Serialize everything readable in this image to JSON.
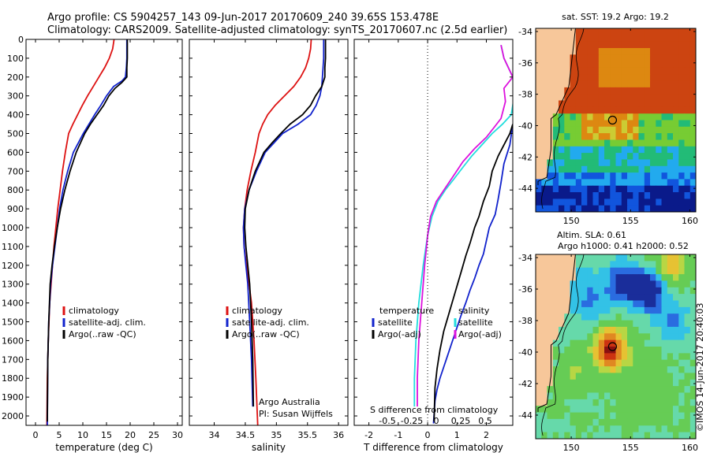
{
  "header": {
    "line1": "Argo profile: CS 5904257_143 09-Jun-2017 20170609_240 39.65S 153.478E",
    "line2": "Climatology: CARS2009. Satellite-adjusted climatology: synTS_20170607.nc (2.5d earlier)"
  },
  "colors": {
    "climatology": "#dd1111",
    "satellite": "#1122cc",
    "argo": "#000000",
    "satellite_s": "#22dddd",
    "argo_s": "#dd11dd",
    "land": "#f7c79a"
  },
  "chart_data": [
    {
      "type": "line",
      "id": "temperature",
      "xlabel": "temperature (deg C)",
      "ylabel": "",
      "xlim": [
        -2,
        31
      ],
      "ylim": [
        2050,
        0
      ],
      "xticks": [
        0,
        5,
        10,
        15,
        20,
        25,
        30
      ],
      "xtick_labels": [
        "0",
        "5",
        "10",
        "15",
        "20",
        "25",
        "30"
      ],
      "yticks": [
        0,
        100,
        200,
        300,
        400,
        500,
        600,
        700,
        800,
        900,
        1000,
        1100,
        1200,
        1300,
        1400,
        1500,
        1600,
        1700,
        1800,
        1900,
        2000
      ],
      "ytick_labels": [
        "0",
        "100",
        "200",
        "300",
        "400",
        "500",
        "600",
        "700",
        "800",
        "900",
        "1000",
        "1100",
        "1200",
        "1300",
        "1400",
        "1500",
        "1600",
        "1700",
        "1800",
        "1900",
        "2000"
      ],
      "legend": [
        "climatology",
        "satellite-adj. clim.",
        "Argo(..raw -QC)"
      ],
      "series": [
        {
          "name": "climatology",
          "color": "#dd1111",
          "x": [
            16.6,
            16.3,
            15.6,
            14.6,
            13.4,
            12.2,
            11.0,
            9.9,
            8.9,
            7.9,
            7.0,
            6.3,
            5.7,
            5.2,
            4.7,
            4.3,
            3.9,
            3.6,
            3.3,
            3.0,
            2.7,
            2.5,
            2.4
          ],
          "y": [
            0,
            50,
            100,
            150,
            200,
            250,
            300,
            350,
            400,
            450,
            500,
            600,
            700,
            800,
            900,
            1000,
            1100,
            1200,
            1300,
            1400,
            1600,
            1800,
            2050
          ]
        },
        {
          "name": "satellite-adj. clim.",
          "color": "#1122cc",
          "x": [
            19.3,
            19.3,
            19.3,
            19.2,
            19.0,
            18.3,
            16.5,
            15.0,
            13.8,
            12.5,
            11.3,
            10.1,
            8.0,
            6.8,
            5.8,
            5.1,
            4.6,
            4.1,
            3.6,
            3.2,
            2.8,
            2.6,
            2.5
          ],
          "y": [
            0,
            50,
            100,
            150,
            200,
            220,
            250,
            300,
            350,
            400,
            450,
            500,
            600,
            700,
            800,
            900,
            1000,
            1100,
            1200,
            1300,
            1500,
            1700,
            2050
          ]
        },
        {
          "name": "Argo(..raw -QC)",
          "color": "#000000",
          "x": [
            19.4,
            19.4,
            19.4,
            19.3,
            19.3,
            18.2,
            16.8,
            15.5,
            14.4,
            13.0,
            11.6,
            10.4,
            8.6,
            7.3,
            6.2,
            5.3,
            4.6,
            4.0,
            3.5,
            3.1,
            2.8,
            2.6,
            2.5
          ],
          "y": [
            0,
            50,
            100,
            150,
            200,
            230,
            260,
            300,
            350,
            400,
            450,
            500,
            600,
            700,
            800,
            900,
            1000,
            1100,
            1200,
            1300,
            1500,
            1700,
            2030
          ]
        }
      ]
    },
    {
      "type": "line",
      "id": "salinity",
      "xlabel": "salinity",
      "ylabel": "",
      "xlim": [
        33.6,
        36.15
      ],
      "ylim": [
        2050,
        0
      ],
      "xticks": [
        34,
        34.5,
        35,
        35.5,
        36
      ],
      "xtick_labels": [
        "34",
        "34.5",
        "35",
        "35.5",
        "36"
      ],
      "legend": [
        "climatology",
        "satellite-adj. clim.",
        "Argo(..raw -QC)"
      ],
      "annotation": [
        "Argo Australia",
        "PI: Susan Wijffels"
      ],
      "series": [
        {
          "name": "climatology",
          "color": "#dd1111",
          "x": [
            35.56,
            35.55,
            35.52,
            35.47,
            35.39,
            35.28,
            35.13,
            34.98,
            34.86,
            34.78,
            34.72,
            34.66,
            34.59,
            34.53,
            34.49,
            34.47,
            34.48,
            34.52,
            34.56,
            34.6,
            34.64,
            34.67,
            34.7
          ],
          "y": [
            0,
            50,
            100,
            150,
            200,
            250,
            300,
            350,
            400,
            450,
            500,
            600,
            700,
            800,
            900,
            1000,
            1100,
            1200,
            1300,
            1400,
            1600,
            1800,
            2050
          ]
        },
        {
          "name": "satellite-adj. clim.",
          "color": "#1122cc",
          "x": [
            35.76,
            35.76,
            35.76,
            35.75,
            35.74,
            35.73,
            35.7,
            35.64,
            35.55,
            35.35,
            35.1,
            34.96,
            34.82,
            34.68,
            34.56,
            34.49,
            34.47,
            34.48,
            34.51,
            34.54,
            34.57,
            34.6,
            34.62
          ],
          "y": [
            0,
            50,
            100,
            150,
            200,
            250,
            300,
            350,
            400,
            450,
            500,
            550,
            600,
            700,
            800,
            900,
            1000,
            1100,
            1200,
            1300,
            1500,
            1700,
            1950
          ]
        },
        {
          "name": "Argo(..raw -QC)",
          "color": "#000000",
          "x": [
            35.79,
            35.79,
            35.79,
            35.78,
            35.78,
            35.73,
            35.63,
            35.55,
            35.42,
            35.22,
            35.07,
            34.93,
            34.8,
            34.66,
            34.56,
            34.5,
            34.49,
            34.51,
            34.54,
            34.57,
            34.6,
            34.62,
            34.63
          ],
          "y": [
            0,
            50,
            100,
            150,
            200,
            250,
            300,
            350,
            400,
            450,
            500,
            550,
            600,
            700,
            800,
            900,
            1000,
            1100,
            1200,
            1300,
            1500,
            1700,
            1950
          ]
        }
      ]
    },
    {
      "type": "line",
      "id": "differences",
      "xlabel": "T difference from climatology",
      "ylabel": "",
      "xlim": [
        -2.5,
        2.9
      ],
      "ylim": [
        2050,
        0
      ],
      "xticks": [
        -2,
        -1,
        0,
        1,
        2
      ],
      "xtick_labels": [
        "-2",
        "-1",
        "0",
        "1",
        "2"
      ],
      "secondary_xlabel": "S difference from climatology",
      "secondary_xticks": [
        -0.5,
        -0.25,
        0,
        0.25,
        0.5
      ],
      "secondary_xtick_labels": [
        "-0.5",
        "-0.25",
        "0",
        "0.25",
        "0.5"
      ],
      "legend_temperature": [
        "temperature",
        "satellite",
        "Argo(-adj)"
      ],
      "legend_salinity": [
        "salinity",
        "satellite",
        "Argo(-adj)"
      ],
      "series": [
        {
          "name": "T satellite",
          "color": "#1122cc",
          "x": [
            2.9,
            2.8,
            2.6,
            2.5,
            2.4,
            2.3,
            2.1,
            2.0,
            1.9,
            1.75,
            1.6,
            1.45,
            1.3,
            1.15,
            1.0,
            0.85,
            0.7,
            0.55,
            0.42,
            0.32,
            0.25,
            0.2
          ],
          "y": [
            450,
            560,
            660,
            760,
            850,
            930,
            1000,
            1070,
            1140,
            1200,
            1270,
            1330,
            1400,
            1460,
            1530,
            1600,
            1670,
            1740,
            1800,
            1860,
            1920,
            2040
          ]
        },
        {
          "name": "T Argo",
          "color": "#000000",
          "x": [
            2.9,
            2.8,
            2.6,
            2.4,
            2.2,
            2.1,
            1.9,
            1.75,
            1.6,
            1.45,
            1.3,
            1.15,
            1.0,
            0.85,
            0.7,
            0.55,
            0.42,
            0.32,
            0.25,
            0.22
          ],
          "y": [
            450,
            500,
            560,
            620,
            700,
            780,
            860,
            940,
            1000,
            1080,
            1150,
            1230,
            1310,
            1390,
            1470,
            1550,
            1650,
            1750,
            1850,
            2030
          ]
        },
        {
          "name": "S satellite",
          "color": "#22dddd",
          "x": [
            2.5,
            2.6,
            2.9,
            2.95,
            2.85,
            2.55,
            2.2,
            1.85,
            1.5,
            1.2,
            0.9,
            0.6,
            0.35,
            0.15,
            0.0,
            -0.15,
            -0.3,
            -0.4,
            -0.45,
            -0.45
          ],
          "y": [
            30,
            100,
            200,
            300,
            400,
            450,
            500,
            560,
            620,
            680,
            740,
            800,
            860,
            940,
            1040,
            1200,
            1400,
            1600,
            1800,
            1950
          ]
        },
        {
          "name": "S Argo",
          "color": "#dd11dd",
          "x": [
            2.5,
            2.6,
            2.9,
            2.6,
            2.65,
            2.5,
            2.3,
            2.0,
            1.6,
            1.2,
            0.9,
            0.6,
            0.3,
            0.1,
            0.0,
            -0.1,
            -0.2,
            -0.3,
            -0.35,
            -0.35
          ],
          "y": [
            30,
            100,
            200,
            260,
            330,
            420,
            460,
            520,
            580,
            650,
            720,
            790,
            860,
            940,
            1040,
            1200,
            1400,
            1600,
            1800,
            1950
          ]
        }
      ]
    },
    {
      "type": "heatmap",
      "id": "sst_map",
      "title": "sat. SST: 19.2  Argo: 19.2",
      "xlim": [
        147,
        160.5
      ],
      "ylim": [
        -45.5,
        -33.8
      ],
      "xticks": [
        150,
        155,
        160
      ],
      "xtick_labels": [
        "150",
        "155",
        "160"
      ],
      "yticks": [
        -34,
        -36,
        -38,
        -40,
        -42,
        -44
      ],
      "ytick_labels": [
        "-34",
        "-36",
        "-38",
        "-40",
        "-42",
        "-44"
      ],
      "marker": {
        "lon": 153.478,
        "lat": -39.65
      }
    },
    {
      "type": "heatmap",
      "id": "sla_map",
      "title_line1": "Altim. SLA: 0.61",
      "title_line2": "Argo h1000: 0.41 h2000: 0.52",
      "xlim": [
        147,
        160.5
      ],
      "ylim": [
        -45.5,
        -33.8
      ],
      "xticks": [
        150,
        155,
        160
      ],
      "xtick_labels": [
        "150",
        "155",
        "160"
      ],
      "yticks": [
        -34,
        -36,
        -38,
        -40,
        -42,
        -44
      ],
      "ytick_labels": [
        "-34",
        "-36",
        "-38",
        "-40",
        "-42",
        "-44"
      ],
      "marker": {
        "lon": 153.478,
        "lat": -39.65
      }
    }
  ],
  "footer": {
    "stamp": "©IMOS 14-Jun-2017 20:40:03"
  }
}
